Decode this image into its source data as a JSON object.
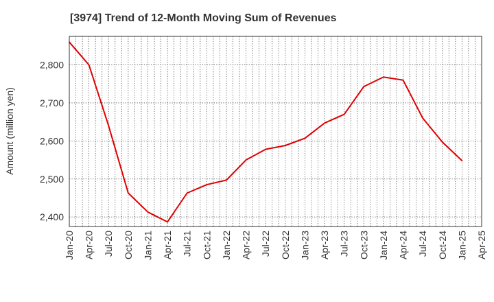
{
  "chart_data": {
    "type": "line",
    "title": "[3974]  Trend of 12-Month Moving Sum of Revenues",
    "ylabel": "Amount (million yen)",
    "xlabel": "",
    "x": [
      "Jan-20",
      "Apr-20",
      "Jul-20",
      "Oct-20",
      "Jan-21",
      "Apr-21",
      "Jul-21",
      "Oct-21",
      "Jan-22",
      "Apr-22",
      "Jul-22",
      "Oct-22",
      "Jan-23",
      "Apr-23",
      "Jul-23",
      "Oct-23",
      "Jan-24",
      "Apr-24",
      "Jul-24",
      "Oct-24",
      "Jan-25"
    ],
    "x_ticks": [
      "Jan-20",
      "Apr-20",
      "Jul-20",
      "Oct-20",
      "Jan-21",
      "Apr-21",
      "Jul-21",
      "Oct-21",
      "Jan-22",
      "Apr-22",
      "Jul-22",
      "Oct-22",
      "Jan-23",
      "Apr-23",
      "Jul-23",
      "Oct-23",
      "Jan-24",
      "Apr-24",
      "Jul-24",
      "Oct-24",
      "Jan-25",
      "Apr-25"
    ],
    "y_ticks": [
      2400,
      2500,
      2600,
      2700,
      2800
    ],
    "y_tick_labels": [
      "2,400",
      "2,500",
      "2,600",
      "2,700",
      "2,800"
    ],
    "ylim": [
      2375,
      2875
    ],
    "grid": true,
    "series": [
      {
        "color": "#e00000",
        "values": [
          2860,
          2800,
          2640,
          2463,
          2413,
          2387,
          2463,
          2485,
          2497,
          2550,
          2578,
          2588,
          2607,
          2647,
          2670,
          2743,
          2768,
          2760,
          2660,
          2597,
          2548
        ]
      }
    ]
  }
}
